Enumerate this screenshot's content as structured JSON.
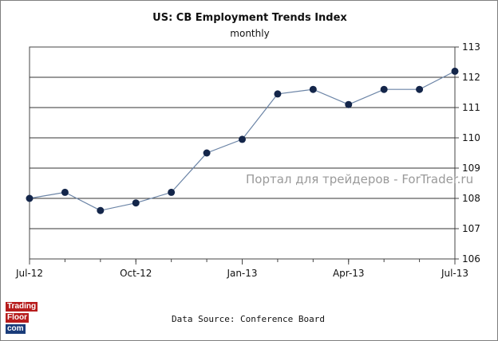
{
  "chart_data": {
    "type": "line",
    "title": "US: CB Employment Trends Index",
    "subtitle": "monthly",
    "x": [
      "Jul-12",
      "Aug-12",
      "Sep-12",
      "Oct-12",
      "Nov-12",
      "Dec-12",
      "Jan-13",
      "Feb-13",
      "Mar-13",
      "Apr-13",
      "May-13",
      "Jun-13",
      "Jul-13"
    ],
    "x_tick_labels": [
      "Jul-12",
      "Oct-12",
      "Jan-13",
      "Apr-13",
      "Jul-13"
    ],
    "values": [
      108.0,
      108.2,
      107.6,
      107.85,
      108.2,
      109.5,
      109.95,
      111.45,
      111.6,
      111.1,
      111.6,
      111.6,
      112.2
    ],
    "ylim": [
      106,
      113
    ],
    "y_ticks": [
      "106",
      "107",
      "108",
      "109",
      "110",
      "111",
      "112",
      "113"
    ],
    "y_axis_side": "right",
    "grid": "horizontal",
    "line_color": "#6b84a6",
    "marker_color": "#14264a"
  },
  "watermark": "Портал для трейдеров - ForTrader.ru",
  "source": "Data Source:  Conference  Board",
  "logo": {
    "line1": "Trading",
    "line2": "Floor",
    "line3": "com"
  }
}
